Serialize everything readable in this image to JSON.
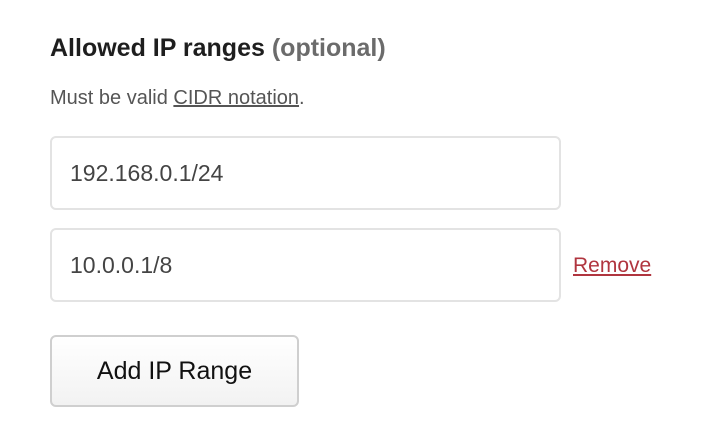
{
  "section": {
    "title": "Allowed IP ranges",
    "optional_label": "(optional)",
    "hint_prefix": "Must be valid ",
    "hint_link": "CIDR notation",
    "hint_suffix": "."
  },
  "ip_ranges": [
    {
      "value": "192.168.0.1/24"
    },
    {
      "value": "10.0.0.1/8",
      "remove_label": "Remove"
    }
  ],
  "add_button_label": "Add IP Range",
  "colors": {
    "remove_link": "#b0353f",
    "border": "#e3e3e3"
  }
}
